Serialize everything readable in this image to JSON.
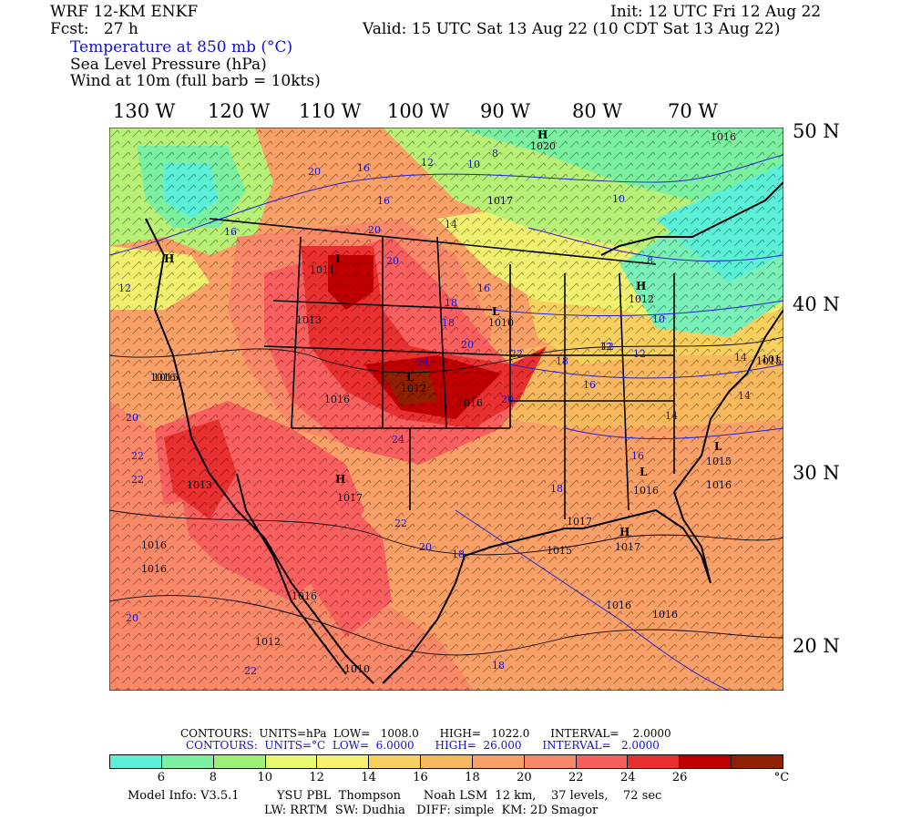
{
  "header": {
    "model": "WRF 12-KM ENKF",
    "forecast": "Fcst:   27 h",
    "init": "Init: 12 UTC Fri 12 Aug 22",
    "valid": "Valid: 15 UTC Sat 13 Aug 22 (10 CDT Sat 13 Aug 22)",
    "fields": [
      "Temperature at 850 mb (°C)",
      "Sea Level Pressure (hPa)",
      "Wind at 10m (full barb = 10kts)"
    ]
  },
  "map": {
    "longitudes": [
      "130 W",
      "120 W",
      "110 W",
      "100 W",
      "90 W",
      "80 W",
      "70 W"
    ],
    "latitudes": [
      "50 N",
      "40 N",
      "30 N",
      "20 N"
    ],
    "pressure_labels": [
      "1020",
      "1016",
      "1017",
      "1011",
      "1012",
      "1013",
      "1010",
      "1015",
      "1016",
      "1017",
      "1012",
      "1013",
      "1016",
      "1016",
      "1016",
      "1012",
      "1010",
      "1016",
      "1016",
      "1017",
      "1015",
      "1016",
      "1017",
      "1016",
      "1016",
      "1015",
      "1016",
      "1015",
      "101"
    ],
    "highs_lows": [
      "H",
      "L",
      "H",
      "H",
      "L",
      "L",
      "H",
      "L",
      "H",
      "L"
    ],
    "temp_labels": [
      "20",
      "16",
      "12",
      "10",
      "8",
      "10",
      "16",
      "14",
      "20",
      "16",
      "16",
      "18",
      "20",
      "18",
      "20",
      "22",
      "24",
      "20",
      "18",
      "16",
      "12",
      "12",
      "14",
      "16",
      "10",
      "22",
      "20",
      "18",
      "20",
      "18",
      "20",
      "24",
      "22",
      "22",
      "22",
      "18",
      "8",
      "12",
      "14",
      "12",
      "14"
    ]
  },
  "contour_info": {
    "slp": "CONTOURS:  UNITS=hPa  LOW=   1008.0      HIGH=   1022.0      INTERVAL=    2.0000",
    "temp": "CONTOURS:  UNITS=°C  LOW=  6.0000      HIGH=  26.000      INTERVAL=   2.0000"
  },
  "colorbar": {
    "colors": [
      "#5cf0d8",
      "#7af0a0",
      "#9cf078",
      "#e8f870",
      "#f8f070",
      "#f8d060",
      "#f8b860",
      "#f8a068",
      "#f88868",
      "#f86060",
      "#e83030",
      "#c00000",
      "#902000"
    ],
    "labels": [
      "6",
      "8",
      "10",
      "12",
      "14",
      "16",
      "18",
      "20",
      "22",
      "24",
      "26"
    ],
    "unit": "°C"
  },
  "footer": {
    "line1": "Model Info: V3.5.1          YSU PBL  Thompson      Noah LSM  12 km,    37 levels,    72 sec",
    "line2": "LW: RRTM  SW: Dudhia   DIFF: simple  KM: 2D Smagor"
  }
}
